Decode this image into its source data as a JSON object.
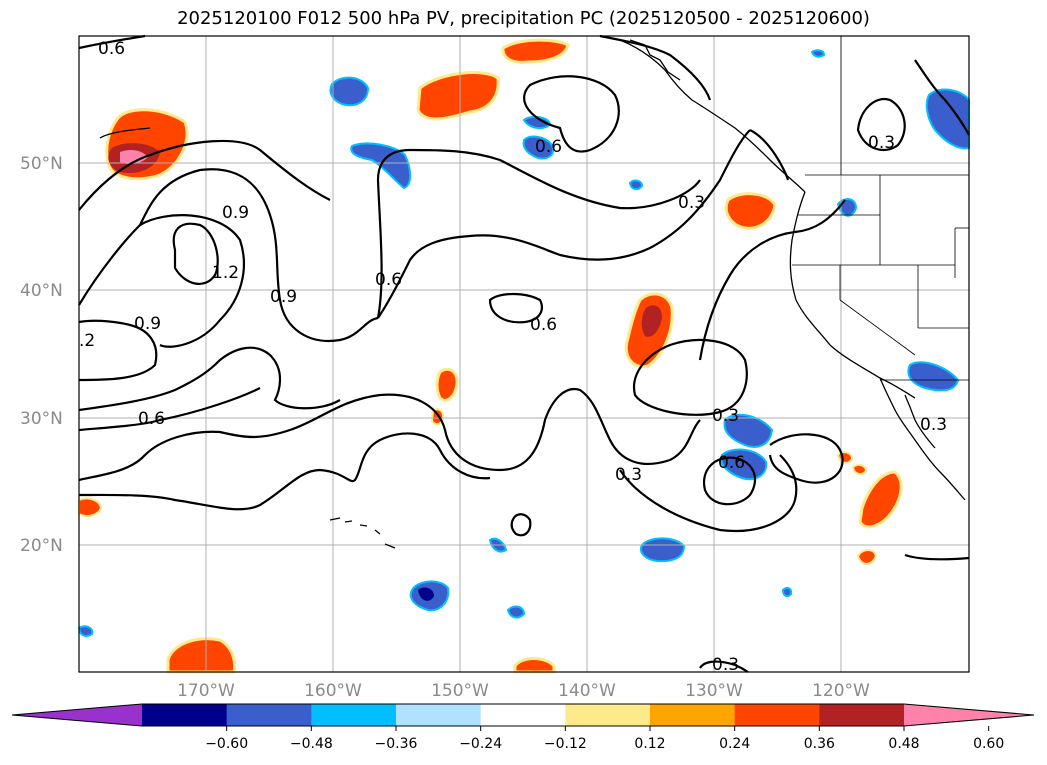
{
  "title": "2025120100 F012 500 hPa PV, precipitation PC (2025120500 - 2025120600)",
  "map": {
    "lat_labels": [
      "50°N",
      "40°N",
      "30°N",
      "20°N"
    ],
    "lon_labels": [
      "170°W",
      "160°W",
      "150°W",
      "140°W",
      "130°W",
      "120°W"
    ],
    "contour_labels": [
      "0.6",
      "0.6",
      "0.3",
      "0.3",
      "0.9",
      "1.2",
      "0.9",
      "0.6",
      "0.6",
      ".2",
      "0.9",
      "0.6",
      "0.3",
      "0.6",
      "0.3",
      "0.3",
      "0.3"
    ]
  },
  "colorbar": {
    "ticks": [
      "−0.60",
      "−0.48",
      "−0.36",
      "−0.24",
      "−0.12",
      "0.12",
      "0.24",
      "0.36",
      "0.48",
      "0.60"
    ],
    "colors": [
      "#9932cc",
      "#00008b",
      "#3a5fcd",
      "#00bfff",
      "#b0e2ff",
      "#ffffff",
      "#fee98b",
      "#ffa500",
      "#ff4500",
      "#b22222",
      "#ff82ab"
    ]
  }
}
